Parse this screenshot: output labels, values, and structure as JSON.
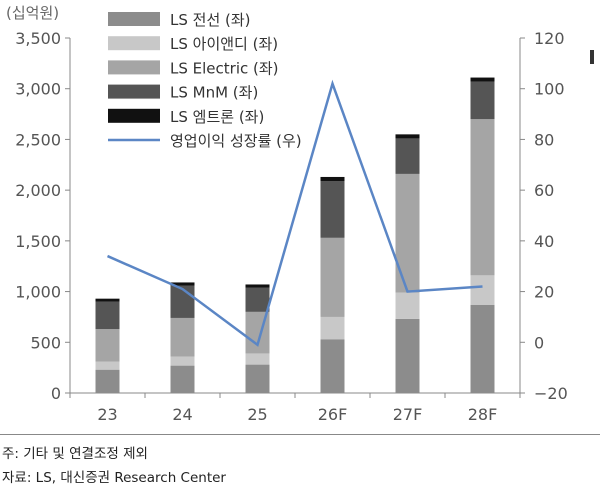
{
  "unit_left": "(십억원)",
  "note": "주: 기타 및 연결조정 제외",
  "source": "자료: LS, 대신증권 Research Center",
  "chart_data": {
    "type": "bar",
    "stacked": true,
    "categories": [
      "23",
      "24",
      "25",
      "26F",
      "27F",
      "28F"
    ],
    "y_left": {
      "ylim": [
        0,
        3500
      ],
      "ticks": [
        "0",
        "500",
        "1,000",
        "1,500",
        "2,000",
        "2,500",
        "3,000",
        "3,500"
      ],
      "tick_values": [
        0,
        500,
        1000,
        1500,
        2000,
        2500,
        3000,
        3500
      ]
    },
    "y_right": {
      "ylim": [
        -20,
        120
      ],
      "ticks": [
        "−20",
        "0",
        "20",
        "40",
        "60",
        "80",
        "100",
        "120"
      ],
      "tick_values": [
        -20,
        0,
        20,
        40,
        60,
        80,
        100,
        120
      ]
    },
    "series": [
      {
        "name": "LS 전선 (좌)",
        "color": "#8c8c8c",
        "axis": "left",
        "values": [
          230,
          270,
          280,
          530,
          730,
          870
        ]
      },
      {
        "name": "LS 아이앤디 (좌)",
        "color": "#c8c8c8",
        "axis": "left",
        "values": [
          80,
          90,
          110,
          220,
          260,
          290
        ]
      },
      {
        "name": "LS Electric (좌)",
        "color": "#a5a5a5",
        "axis": "left",
        "values": [
          320,
          380,
          410,
          780,
          1170,
          1540
        ]
      },
      {
        "name": "LS MnM (좌)",
        "color": "#555555",
        "axis": "left",
        "values": [
          270,
          320,
          240,
          560,
          350,
          370
        ]
      },
      {
        "name": "LS 엠트론 (좌)",
        "color": "#111111",
        "axis": "left",
        "values": [
          30,
          30,
          30,
          40,
          40,
          40
        ]
      }
    ],
    "line": {
      "name": "영업이익 성장률 (우)",
      "color": "#5b86c5",
      "axis": "right",
      "values": [
        34,
        21,
        -1,
        102,
        20,
        22
      ]
    },
    "legend": "top-left",
    "grid": false
  }
}
